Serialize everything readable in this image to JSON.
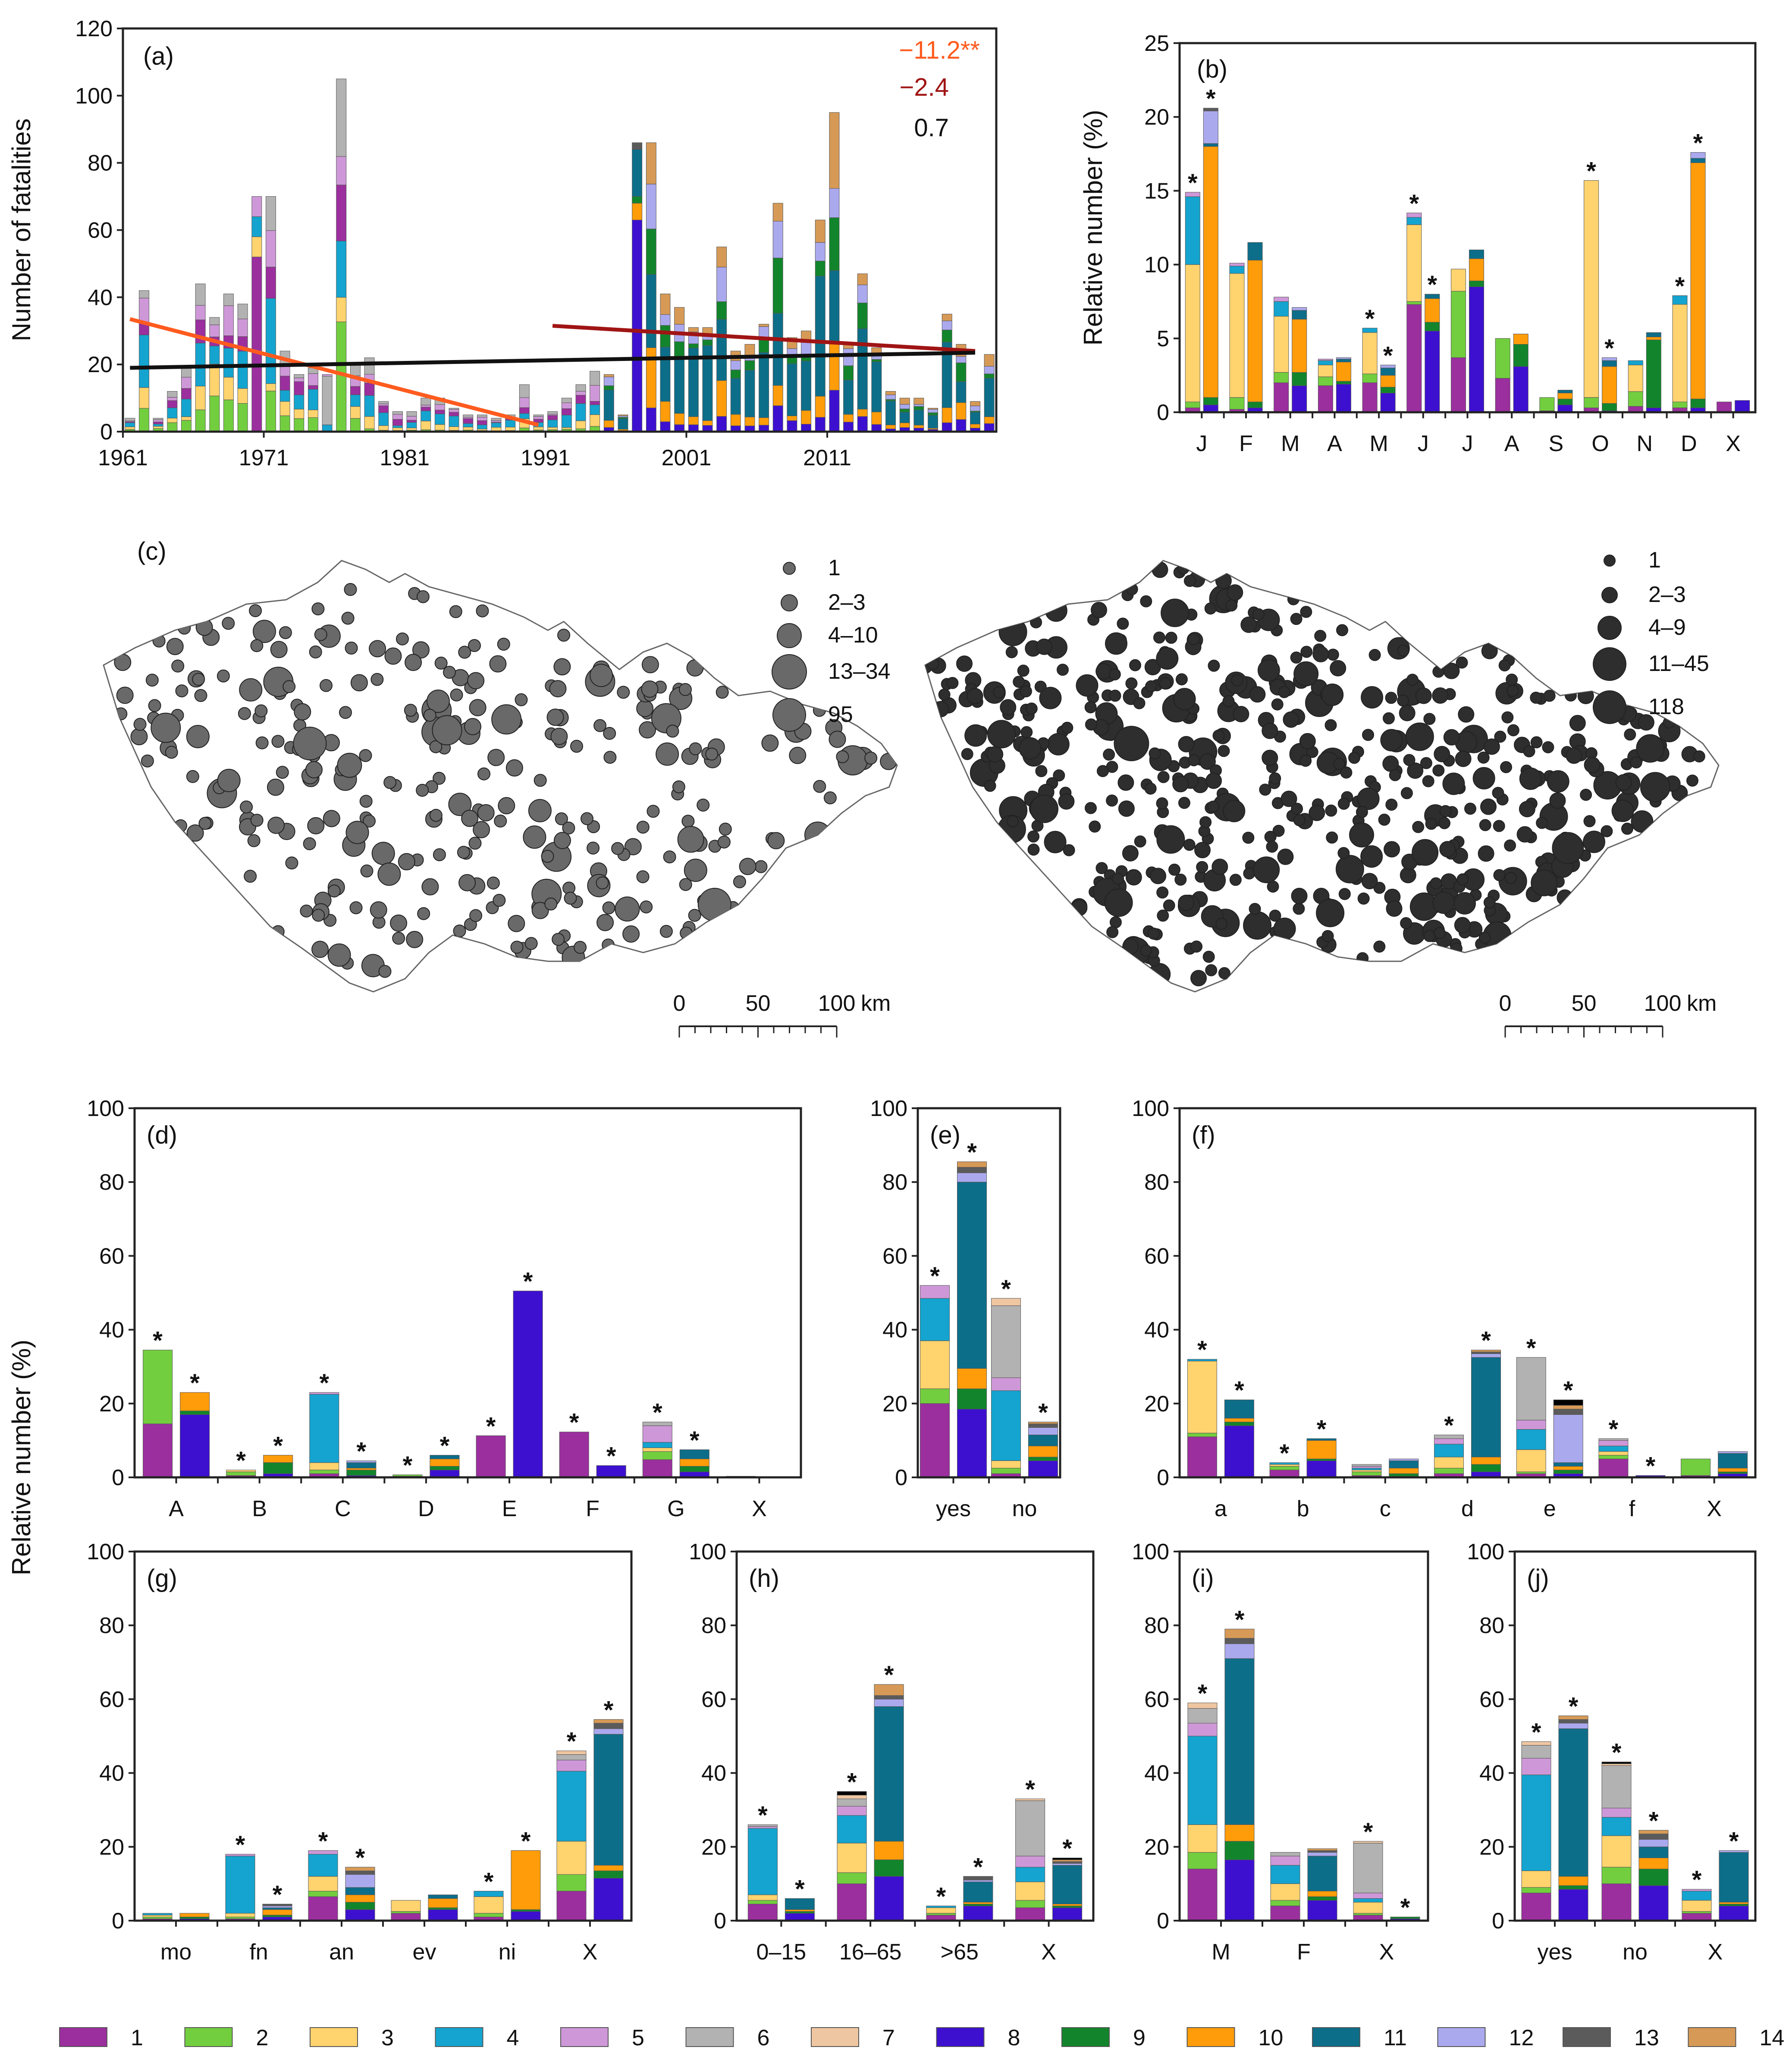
{
  "colors": {
    "1": "#9B2F9E",
    "2": "#72CE3E",
    "3": "#FFD36E",
    "4": "#14A4CF",
    "5": "#CE98D8",
    "6": "#B2B2B2",
    "7": "#EFC6A2",
    "8": "#3D10D0",
    "9": "#12852C",
    "10": "#FF9C0A",
    "11": "#0D6E89",
    "12": "#ABA9EE",
    "13": "#5B5B5B",
    "14": "#D69A56"
  },
  "legend": [
    "1",
    "2",
    "3",
    "4",
    "5",
    "6",
    "7",
    "8",
    "9",
    "10",
    "11",
    "12",
    "13",
    "14"
  ],
  "chart_data": [
    {
      "id": "a",
      "type": "bar",
      "panel_label": "(a)",
      "ylabel": "Number of fatalities",
      "ylim": [
        0,
        120
      ],
      "yticks": [
        "0",
        "20",
        "40",
        "60",
        "80",
        "100",
        "120"
      ],
      "xticks": [
        "1961",
        "1971",
        "1981",
        "1991",
        "2001",
        "2011"
      ],
      "years_start": 1961,
      "totals": [
        4,
        42,
        4,
        12,
        19,
        44,
        34,
        41,
        38,
        36,
        70,
        24,
        17,
        19,
        17,
        105,
        20,
        22,
        9,
        6,
        6,
        10,
        10,
        7,
        5,
        5,
        4,
        5,
        14,
        5,
        6,
        10,
        14,
        18,
        17,
        5,
        35,
        86,
        41,
        37,
        31,
        31,
        55,
        24,
        26,
        32,
        68,
        28,
        30,
        63,
        95,
        26,
        47,
        25,
        12,
        10,
        10,
        7,
        35,
        26,
        9,
        23
      ],
      "trend_labels": [
        "−11.2**",
        "−2.4",
        "0.7"
      ],
      "trend_colors": [
        "#FF5B1F",
        "#A01414",
        "#111111"
      ],
      "trends": [
        {
          "x0": 1961,
          "y0": 33.5,
          "x1": 1990,
          "y1": 2
        },
        {
          "x0": 1991,
          "y0": 31.5,
          "x1": 2021,
          "y1": 24
        },
        {
          "x0": 1961,
          "y0": 19,
          "x1": 2021,
          "y1": 23.5
        }
      ]
    },
    {
      "id": "b",
      "type": "bar",
      "panel_label": "(b)",
      "ylabel": "Relative number (%)",
      "ylim": [
        0,
        25
      ],
      "yticks": [
        "0",
        "5",
        "10",
        "15",
        "20",
        "25"
      ],
      "categories": [
        "J",
        "F",
        "M",
        "A",
        "M",
        "J",
        "J",
        "A",
        "S",
        "O",
        "N",
        "D",
        "X"
      ],
      "stars": [
        [
          true,
          true
        ],
        [
          false,
          false
        ],
        [
          false,
          false
        ],
        [
          false,
          false
        ],
        [
          true,
          true
        ],
        [
          true,
          true
        ],
        [
          false,
          false
        ],
        [
          false,
          false
        ],
        [
          false,
          false
        ],
        [
          true,
          true
        ],
        [
          false,
          false
        ],
        [
          true,
          true
        ],
        [
          false,
          false
        ]
      ],
      "series": [
        [
          [
            0.3,
            0.4,
            9.3,
            4.6,
            0.3
          ],
          [
            0.5,
            0.5,
            17,
            0.2,
            2.2,
            0.2
          ]
        ],
        [
          [
            0.2,
            0.8,
            8.4,
            0.5,
            0.2
          ],
          [
            0.3,
            0.4,
            9.6,
            1.2
          ]
        ],
        [
          [
            2,
            0.7,
            3.8,
            1,
            0.3
          ],
          [
            1.8,
            0.9,
            3.6,
            0.6,
            0.2
          ]
        ],
        [
          [
            1.8,
            0.6,
            0.8,
            0.3,
            0.1
          ],
          [
            1.9,
            0.2,
            1.3,
            0.2,
            0.1
          ]
        ],
        [
          [
            2,
            0.6,
            2.8,
            0.3
          ],
          [
            1.3,
            0.4,
            0.8,
            0.5,
            0.2
          ]
        ],
        [
          [
            7.3,
            0.2,
            5.2,
            0.5,
            0.3
          ],
          [
            5.5,
            0.6,
            1.6,
            0.3
          ]
        ],
        [
          [
            3.7,
            4.5,
            1.5
          ],
          [
            8.5,
            0.4,
            1.5,
            0.6
          ]
        ],
        [
          [
            2.3,
            2.7
          ],
          [
            3.1,
            1.5,
            0.7
          ]
        ],
        [
          [
            0.1,
            0.9
          ],
          [
            0.5,
            0.4,
            0.4,
            0.2
          ]
        ],
        [
          [
            0.3,
            0.7,
            14.7
          ],
          [
            0.1,
            0.5,
            2.5,
            0.4,
            0.2
          ]
        ],
        [
          [
            0.4,
            1,
            1.8,
            0.3
          ],
          [
            0.3,
            4.6,
            0.2,
            0.3
          ]
        ],
        [
          [
            0.3,
            0.4,
            6.6,
            0.6
          ],
          [
            0.3,
            0.6,
            16,
            0.3,
            0.4
          ]
        ],
        [
          [
            0.7
          ],
          [
            0.8
          ]
        ]
      ]
    },
    {
      "id": "d",
      "type": "bar",
      "panel_label": "(d)",
      "ylim": [
        0,
        100
      ],
      "yticks": [
        "0",
        "20",
        "40",
        "60",
        "80",
        "100"
      ],
      "categories": [
        "A",
        "B",
        "C",
        "D",
        "E",
        "F",
        "G",
        "X"
      ],
      "stars": [
        [
          true,
          true
        ],
        [
          true,
          true
        ],
        [
          true,
          true
        ],
        [
          true,
          true
        ],
        [
          true,
          true
        ],
        [
          true,
          true
        ],
        [
          true,
          true
        ],
        [
          false,
          false
        ]
      ],
      "series": [
        [
          [
            14.5,
            20
          ],
          [
            17,
            1,
            5
          ]
        ],
        [
          [
            0.5,
            1,
            0.5
          ],
          [
            1,
            3,
            2
          ]
        ],
        [
          [
            1,
            1,
            2,
            18.5,
            0.5
          ],
          [
            0.5,
            1.5,
            0.5,
            1.5,
            0.5
          ]
        ],
        [
          [
            0.3,
            0.4
          ],
          [
            2,
            1,
            2,
            1
          ]
        ],
        [
          [
            11.3
          ],
          [
            50.5
          ]
        ],
        [
          [
            12.3
          ],
          [
            3.2
          ]
        ],
        [
          [
            4.8,
            2.2,
            1,
            1.5,
            4.5,
            1
          ],
          [
            1.5,
            1.5,
            2,
            2.5
          ]
        ],
        [
          [
            0.3
          ],
          [
            0.2
          ]
        ]
      ]
    },
    {
      "id": "e",
      "type": "bar",
      "panel_label": "(e)",
      "ylim": [
        0,
        100
      ],
      "yticks": [
        "0",
        "20",
        "40",
        "60",
        "80",
        "100"
      ],
      "categories": [
        "yes",
        "no"
      ],
      "stars": [
        [
          true,
          true
        ],
        [
          true,
          true
        ]
      ],
      "series": [
        [
          [
            20,
            4,
            13,
            11.5,
            3.5
          ],
          [
            18.5,
            5.5,
            5.5,
            50.5,
            2.5,
            1.5,
            1.5
          ]
        ],
        [
          [
            1,
            1.5,
            2,
            19,
            3.5,
            19.5,
            2
          ],
          [
            4.5,
            1,
            3,
            3,
            2,
            1,
            0.5
          ]
        ]
      ]
    },
    {
      "id": "f",
      "type": "bar",
      "panel_label": "(f)",
      "ylim": [
        0,
        100
      ],
      "yticks": [
        "0",
        "20",
        "40",
        "60",
        "80",
        "100"
      ],
      "categories": [
        "a",
        "b",
        "c",
        "d",
        "e",
        "f",
        "X"
      ],
      "stars": [
        [
          true,
          true
        ],
        [
          true,
          true
        ],
        [
          false,
          false
        ],
        [
          true,
          true
        ],
        [
          true,
          true
        ],
        [
          true,
          true
        ],
        [
          false,
          false
        ]
      ],
      "series": [
        [
          [
            11,
            1,
            19.5,
            0.5
          ],
          [
            14,
            1,
            1,
            5
          ]
        ],
        [
          [
            2,
            1,
            0.5,
            0.5
          ],
          [
            4.5,
            0.5,
            5,
            0.5
          ]
        ],
        [
          [
            0.5,
            1,
            0.5,
            0.5,
            0.5,
            0.5
          ],
          [
            0.3,
            0.7,
            1.5,
            2,
            0.5
          ]
        ],
        [
          [
            1,
            1.5,
            3,
            3.5,
            1.5,
            1
          ],
          [
            1.5,
            2,
            2,
            27,
            1,
            0.5,
            0.5
          ]
        ],
        [
          [
            1,
            0.5,
            6,
            5.5,
            2.5,
            17
          ],
          [
            1,
            1,
            1,
            1,
            13,
            1.5,
            1,
            1.5
          ]
        ],
        [
          [
            5,
            1,
            1,
            1.5,
            1.5,
            0.5
          ],
          [
            0.5
          ]
        ],
        [
          [
            0.5,
            4.5
          ],
          [
            1,
            0.5,
            1,
            4,
            0.5
          ]
        ]
      ]
    },
    {
      "id": "g",
      "type": "bar",
      "panel_label": "(g)",
      "ylabel": "Relative number (%)",
      "ylim": [
        0,
        100
      ],
      "yticks": [
        "0",
        "20",
        "40",
        "60",
        "80",
        "100"
      ],
      "categories": [
        "mo",
        "fn",
        "an",
        "ev",
        "ni",
        "X"
      ],
      "stars": [
        [
          false,
          false
        ],
        [
          true,
          true
        ],
        [
          true,
          true
        ],
        [
          false,
          false
        ],
        [
          true,
          true
        ],
        [
          true,
          true
        ]
      ],
      "series": [
        [
          [
            0.5,
            0.5,
            0.5,
            0.5
          ],
          [
            0.5,
            0.5,
            1
          ]
        ],
        [
          [
            0.5,
            0.5,
            1,
            15.5,
            0.5
          ],
          [
            1,
            0.5,
            1.5,
            0.5,
            0.5,
            0.5
          ]
        ],
        [
          [
            6.5,
            1.5,
            4,
            6,
            1
          ],
          [
            3,
            2,
            2,
            2,
            3.5,
            1,
            1
          ]
        ],
        [
          [
            2,
            0.5,
            3
          ],
          [
            3,
            0.5,
            2.5,
            1
          ]
        ],
        [
          [
            1,
            1,
            4.5,
            1.5
          ],
          [
            2.5,
            0.5,
            16
          ]
        ],
        [
          [
            8,
            4.5,
            9,
            19,
            3,
            1.5,
            1
          ],
          [
            11.5,
            2,
            1.5,
            35.5,
            1.5,
            1.5,
            1
          ]
        ]
      ]
    },
    {
      "id": "h",
      "type": "bar",
      "panel_label": "(h)",
      "ylim": [
        0,
        100
      ],
      "yticks": [
        "0",
        "20",
        "40",
        "60",
        "80",
        "100"
      ],
      "categories": [
        "0–15",
        "16–65",
        ">65",
        "X"
      ],
      "stars": [
        [
          true,
          true
        ],
        [
          true,
          true
        ],
        [
          true,
          true
        ],
        [
          true,
          true
        ]
      ],
      "series": [
        [
          [
            4.5,
            1,
            1.5,
            18,
            0.5,
            0.5
          ],
          [
            2,
            0.5,
            0.5,
            3
          ]
        ],
        [
          [
            10,
            3,
            8,
            7.5,
            2.5,
            2,
            1,
            1
          ],
          [
            12,
            4.5,
            5,
            36.5,
            2,
            1,
            3
          ]
        ],
        [
          [
            1.5,
            0.5,
            1.5,
            0.5
          ],
          [
            4,
            0.5,
            0.5,
            5.5,
            0.5,
            1
          ]
        ],
        [
          [
            3.5,
            2,
            5,
            4,
            3,
            15,
            0.5
          ],
          [
            3.5,
            0.5,
            0.5,
            10.5,
            0.5,
            0.5,
            0.5,
            0.5
          ]
        ]
      ]
    },
    {
      "id": "i",
      "type": "bar",
      "panel_label": "(i)",
      "ylim": [
        0,
        100
      ],
      "yticks": [
        "0",
        "20",
        "40",
        "60",
        "80",
        "100"
      ],
      "categories": [
        "M",
        "F",
        "X"
      ],
      "stars": [
        [
          true,
          true
        ],
        [
          false,
          false
        ],
        [
          true,
          true
        ]
      ],
      "series": [
        [
          [
            14,
            4.5,
            7.5,
            24,
            3.5,
            4,
            1.5
          ],
          [
            16.5,
            5,
            4.5,
            45,
            4,
            1.5,
            2.5
          ]
        ],
        [
          [
            4,
            1.5,
            4.5,
            5,
            2.5,
            1
          ],
          [
            5.5,
            1,
            1.5,
            9.5,
            1,
            0.5,
            0.5
          ]
        ],
        [
          [
            1.5,
            0.5,
            3,
            1,
            1.5,
            13.5,
            0.5
          ],
          [
            0.5,
            0.5
          ]
        ]
      ]
    },
    {
      "id": "j",
      "type": "bar",
      "panel_label": "(j)",
      "ylim": [
        0,
        100
      ],
      "yticks": [
        "0",
        "20",
        "40",
        "60",
        "80",
        "100"
      ],
      "categories": [
        "yes",
        "no",
        "X"
      ],
      "stars": [
        [
          true,
          true
        ],
        [
          true,
          true
        ],
        [
          true,
          true
        ]
      ],
      "series": [
        [
          [
            7.5,
            1.5,
            4.5,
            26,
            4.5,
            3.5,
            1
          ],
          [
            8.5,
            1,
            2.5,
            40,
            1.5,
            1,
            1
          ]
        ],
        [
          [
            10,
            4.5,
            8.5,
            5,
            2.5,
            11.5,
            0.5,
            0.5
          ],
          [
            9.5,
            4.5,
            3,
            3,
            2,
            1.5,
            1
          ]
        ],
        [
          [
            2,
            0.5,
            3,
            2.5,
            0.5
          ],
          [
            4,
            0.5,
            0.5,
            13.5,
            0.5
          ]
        ]
      ]
    }
  ],
  "maps": {
    "panel_label": "(c)",
    "left": {
      "legend": [
        "1",
        "2–3",
        "4–10",
        "13–34",
        "95"
      ],
      "scale": [
        "0",
        "50",
        "100",
        "km"
      ],
      "dot_color": "#696969"
    },
    "right": {
      "legend": [
        "1",
        "2–3",
        "4–9",
        "11–45",
        "118"
      ],
      "scale": [
        "0",
        "50",
        "100",
        "km"
      ],
      "dot_color": "#2E2E2E"
    }
  }
}
